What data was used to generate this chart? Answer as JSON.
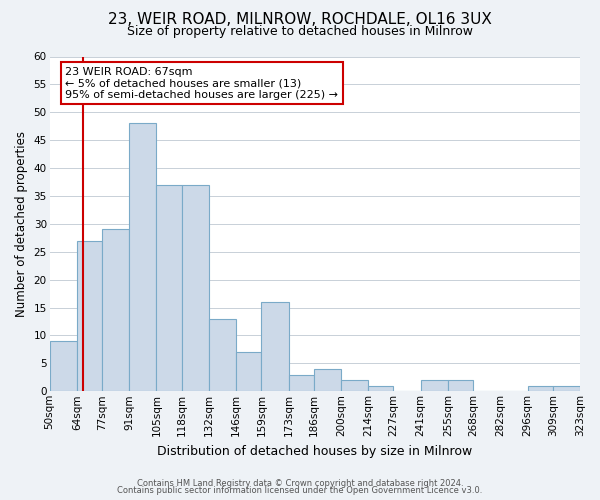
{
  "title1": "23, WEIR ROAD, MILNROW, ROCHDALE, OL16 3UX",
  "title2": "Size of property relative to detached houses in Milnrow",
  "xlabel": "Distribution of detached houses by size in Milnrow",
  "ylabel": "Number of detached properties",
  "bin_edges": [
    50,
    64,
    77,
    91,
    105,
    118,
    132,
    146,
    159,
    173,
    186,
    200,
    214,
    227,
    241,
    255,
    268,
    282,
    296,
    309,
    323
  ],
  "counts": [
    9,
    27,
    29,
    48,
    37,
    37,
    13,
    7,
    16,
    3,
    4,
    2,
    1,
    0,
    2,
    2,
    0,
    0,
    1,
    1
  ],
  "tick_labels": [
    "50sqm",
    "64sqm",
    "77sqm",
    "91sqm",
    "105sqm",
    "118sqm",
    "132sqm",
    "146sqm",
    "159sqm",
    "173sqm",
    "186sqm",
    "200sqm",
    "214sqm",
    "227sqm",
    "241sqm",
    "255sqm",
    "268sqm",
    "282sqm",
    "296sqm",
    "309sqm",
    "323sqm"
  ],
  "bar_color": "#ccd9e8",
  "bar_edge_color": "#7aaac8",
  "vline_x": 67,
  "vline_color": "#cc0000",
  "annotation_text": "23 WEIR ROAD: 67sqm\n← 5% of detached houses are smaller (13)\n95% of semi-detached houses are larger (225) →",
  "annotation_box_edge_color": "#cc0000",
  "ylim": [
    0,
    60
  ],
  "yticks": [
    0,
    5,
    10,
    15,
    20,
    25,
    30,
    35,
    40,
    45,
    50,
    55,
    60
  ],
  "footer1": "Contains HM Land Registry data © Crown copyright and database right 2024.",
  "footer2": "Contains public sector information licensed under the Open Government Licence v3.0.",
  "bg_color": "#eef2f6",
  "plot_bg_color": "#ffffff",
  "title1_fontsize": 11,
  "title2_fontsize": 9,
  "ylabel_fontsize": 8.5,
  "xlabel_fontsize": 9,
  "tick_fontsize": 7.5,
  "annot_fontsize": 8,
  "footer_fontsize": 6
}
